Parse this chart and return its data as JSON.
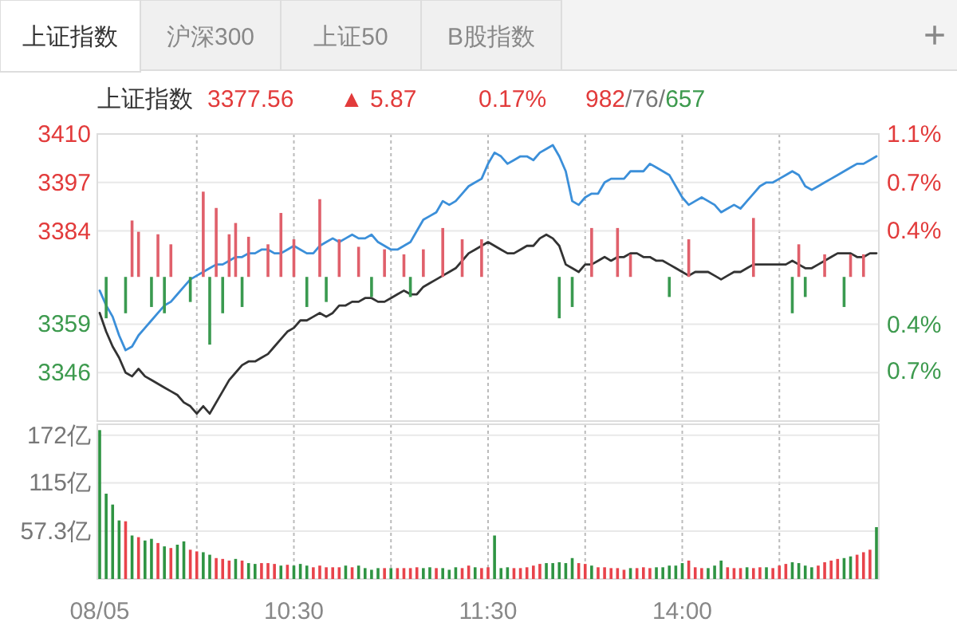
{
  "chart_data": [
    {
      "type": "other",
      "annotations": [
        "上证指数",
        "沪深300",
        "上证50",
        "B股指数",
        "+"
      ]
    },
    {
      "type": "line",
      "title": "上证指数",
      "annotations": [
        "3377.56",
        "▲ 5.87",
        "0.17%",
        "982/76/657"
      ],
      "categories": [
        null,
        null,
        null,
        null,
        null,
        null,
        null,
        null,
        null,
        null,
        null,
        null,
        null,
        null,
        null,
        null,
        null,
        null,
        null,
        null,
        null,
        null,
        null,
        null,
        null,
        null,
        null,
        null,
        null,
        null,
        null,
        null,
        null,
        null,
        null,
        null,
        null,
        null,
        null,
        null,
        null,
        null,
        null,
        null,
        null,
        null,
        null,
        null,
        null,
        null,
        null,
        null,
        null,
        null,
        null,
        null,
        null,
        null,
        null,
        null,
        null,
        null,
        null,
        null,
        null,
        null,
        null,
        null,
        null,
        null,
        null,
        null,
        null,
        null,
        null,
        null,
        null,
        null,
        null,
        null,
        null,
        null,
        null,
        null,
        null,
        null,
        null,
        null,
        null,
        null,
        null,
        null,
        null,
        null,
        null,
        null,
        null,
        null,
        null,
        null,
        null,
        null,
        null,
        null,
        null,
        null,
        null,
        null,
        null,
        null,
        null,
        null,
        null,
        null,
        null,
        null,
        null,
        null,
        null,
        null,
        null
      ],
      "series": [
        {
          "color": "#3b8fd9",
          "values": [
            3368,
            3364,
            3361,
            3356,
            3352,
            3353,
            3356,
            3358,
            3360,
            3362,
            3364,
            3365,
            3367,
            3369,
            3371,
            3372,
            3373,
            3374,
            3375,
            3375,
            3376,
            3377,
            3377,
            3378,
            3378,
            3379,
            3379,
            3378,
            3378,
            3379,
            3380,
            3379,
            3378,
            3378,
            3380,
            3381,
            3382,
            3381,
            3382,
            3383,
            3382,
            3382,
            3383,
            3381,
            3380,
            3379,
            3379,
            3380,
            3381,
            3384,
            3387,
            3388,
            3389,
            3392,
            3391,
            3392,
            3394,
            3396,
            3397,
            3398,
            3402,
            3405,
            3404,
            3402,
            3403,
            3404,
            3404,
            3403,
            3405,
            3406,
            3407,
            3404,
            3400,
            3392,
            3391,
            3393,
            3394,
            3394,
            3397,
            3398,
            3398,
            3398,
            3400,
            3400,
            3400,
            3402,
            3401,
            3400,
            3399,
            3396,
            3393,
            3391,
            3392,
            3393,
            3392,
            3391,
            3389,
            3390,
            3391,
            3390,
            3392,
            3394,
            3396,
            3397,
            3397,
            3398,
            3399,
            3400,
            3399,
            3396,
            3395,
            3396,
            3397,
            3398,
            3399,
            3400,
            3401,
            3402,
            3402,
            3403,
            3404
          ]
        },
        {
          "color": "#333333",
          "values": [
            3362,
            3357,
            3353,
            3350,
            3346,
            3345,
            3347,
            3345,
            3344,
            3343,
            3342,
            3341,
            3340,
            3338,
            3337,
            3335,
            3337,
            3335,
            3338,
            3341,
            3344,
            3346,
            3348,
            3349,
            3349,
            3350,
            3351,
            3353,
            3355,
            3357,
            3358,
            3360,
            3360,
            3361,
            3362,
            3361,
            3362,
            3364,
            3364,
            3365,
            3365,
            3366,
            3366,
            3365,
            3365,
            3366,
            3367,
            3368,
            3367,
            3367,
            3369,
            3370,
            3371,
            3372,
            3373,
            3374,
            3376,
            3378,
            3379,
            3380,
            3381,
            3380,
            3379,
            3378,
            3378,
            3379,
            3380,
            3380,
            3382,
            3383,
            3382,
            3380,
            3375,
            3374,
            3373,
            3375,
            3375,
            3376,
            3377,
            3376,
            3377,
            3377,
            3378,
            3378,
            3377,
            3377,
            3376,
            3376,
            3375,
            3374,
            3373,
            3372,
            3373,
            3373,
            3373,
            3372,
            3371,
            3372,
            3373,
            3373,
            3374,
            3375,
            3375,
            3375,
            3375,
            3375,
            3375,
            3376,
            3375,
            3374,
            3374,
            3375,
            3376,
            3377,
            3378,
            3378,
            3378,
            3377,
            3377,
            3378,
            3378
          ]
        },
        {
          "type": "bar",
          "axis": "y2",
          "color": "#e0606b",
          "values": [
            null,
            null,
            null,
            null,
            null,
            0.45,
            0.36,
            null,
            null,
            0.34,
            null,
            0.26,
            null,
            null,
            null,
            null,
            0.68,
            null,
            0.55,
            null,
            0.34,
            0.43,
            null,
            0.32,
            null,
            null,
            0.26,
            null,
            0.51,
            null,
            0.3,
            null,
            null,
            null,
            0.62,
            null,
            null,
            0.3,
            null,
            null,
            0.24,
            null,
            null,
            null,
            0.22,
            null,
            null,
            0.18,
            null,
            null,
            0.22,
            null,
            null,
            0.39,
            null,
            null,
            0.3,
            null,
            null,
            0.3,
            null,
            null,
            null,
            null,
            null,
            null,
            null,
            null,
            null,
            null,
            null,
            null,
            null,
            null,
            null,
            null,
            0.39,
            null,
            null,
            null,
            0.39,
            null,
            0.18,
            null,
            null,
            null,
            null,
            null,
            null,
            null,
            null,
            0.3,
            null,
            null,
            null,
            null,
            null,
            null,
            null,
            null,
            null,
            0.47,
            null,
            null,
            null,
            null,
            null,
            null,
            0.26,
            null,
            null,
            null,
            0.18,
            null,
            null,
            null,
            0.18,
            null,
            0.18,
            null,
            null
          ]
        },
        {
          "type": "bar",
          "axis": "y2",
          "color": "#3a9a50",
          "values": [
            null,
            -0.33,
            null,
            null,
            -0.29,
            null,
            null,
            null,
            -0.24,
            null,
            -0.29,
            null,
            null,
            null,
            -0.2,
            null,
            null,
            -0.54,
            null,
            -0.29,
            null,
            null,
            -0.24,
            null,
            null,
            null,
            null,
            null,
            null,
            null,
            null,
            null,
            -0.24,
            null,
            null,
            -0.2,
            null,
            null,
            null,
            null,
            null,
            null,
            -0.16,
            null,
            null,
            null,
            null,
            null,
            -0.16,
            null,
            null,
            null,
            null,
            null,
            null,
            null,
            null,
            null,
            null,
            null,
            null,
            null,
            null,
            null,
            null,
            null,
            null,
            null,
            null,
            null,
            null,
            -0.33,
            null,
            -0.24,
            null,
            null,
            null,
            null,
            null,
            null,
            null,
            null,
            null,
            null,
            null,
            null,
            null,
            null,
            -0.16,
            null,
            null,
            null,
            null,
            null,
            null,
            null,
            null,
            null,
            null,
            null,
            null,
            null,
            null,
            null,
            null,
            null,
            null,
            -0.29,
            null,
            -0.16,
            null,
            null,
            null,
            null,
            null,
            -0.24,
            null,
            null,
            null,
            null,
            null
          ]
        }
      ],
      "ylim": [
        3333,
        3410
      ],
      "yticks": [
        3346,
        3359,
        3384,
        3397,
        3410
      ],
      "y2lim": [
        -1.15,
        1.14
      ],
      "y2ticks": [
        {
          "value": -0.75,
          "label": "0.7%"
        },
        {
          "value": -0.38,
          "label": "0.4%"
        },
        {
          "value": 0.37,
          "label": "0.4%"
        },
        {
          "value": 0.75,
          "label": "0.7%"
        },
        {
          "value": 1.14,
          "label": "1.1%"
        }
      ],
      "grid": true,
      "tick_labels": "y"
    },
    {
      "type": "bar",
      "categories": [
        "08/05",
        null,
        null,
        null,
        null,
        null,
        null,
        null,
        null,
        null,
        null,
        null,
        null,
        null,
        null,
        null,
        null,
        null,
        null,
        null,
        null,
        null,
        null,
        null,
        null,
        null,
        null,
        null,
        null,
        null,
        "10:30",
        null,
        null,
        null,
        null,
        null,
        null,
        null,
        null,
        null,
        null,
        null,
        null,
        null,
        null,
        null,
        null,
        null,
        null,
        null,
        null,
        null,
        null,
        null,
        null,
        null,
        null,
        null,
        null,
        null,
        "11:30",
        null,
        null,
        null,
        null,
        null,
        null,
        null,
        null,
        null,
        null,
        null,
        null,
        null,
        null,
        null,
        null,
        null,
        null,
        null,
        null,
        null,
        null,
        null,
        null,
        null,
        null,
        null,
        null,
        null,
        "14:00",
        null,
        null,
        null,
        null,
        null,
        null,
        null,
        null,
        null,
        null,
        null,
        null,
        null,
        null,
        null,
        null,
        null,
        null,
        null,
        null,
        null,
        null,
        null,
        null,
        null,
        null,
        null,
        null,
        null,
        null
      ],
      "series": [
        {
          "color": "#e8434b",
          "values": [
            null,
            null,
            null,
            null,
            69,
            null,
            50,
            null,
            null,
            43,
            null,
            37,
            null,
            null,
            35,
            33,
            null,
            null,
            25,
            24,
            22,
            null,
            22,
            null,
            null,
            19,
            19,
            18,
            null,
            17,
            null,
            null,
            null,
            14,
            16,
            14,
            14,
            14,
            null,
            14,
            null,
            null,
            null,
            null,
            13,
            null,
            13,
            13,
            13,
            14,
            null,
            null,
            13,
            null,
            null,
            null,
            13,
            16,
            null,
            13,
            14,
            null,
            null,
            null,
            13,
            13,
            14,
            16,
            18,
            null,
            null,
            null,
            null,
            null,
            19,
            18,
            null,
            14,
            14,
            13,
            13,
            11,
            null,
            13,
            14,
            13,
            null,
            null,
            null,
            null,
            null,
            22,
            14,
            13,
            null,
            null,
            null,
            14,
            13,
            13,
            null,
            13,
            14,
            null,
            13,
            16,
            18,
            null,
            null,
            null,
            null,
            16,
            20,
            22,
            24,
            null,
            null,
            29,
            32,
            35,
            null
          ]
        },
        {
          "color": "#2f9443",
          "values": [
            178,
            102,
            89,
            70,
            null,
            52,
            null,
            46,
            48,
            null,
            39,
            null,
            41,
            45,
            null,
            null,
            32,
            29,
            null,
            null,
            null,
            24,
            null,
            19,
            18,
            null,
            null,
            null,
            16,
            null,
            16,
            18,
            16,
            null,
            null,
            null,
            null,
            null,
            16,
            null,
            16,
            13,
            11,
            13,
            null,
            13,
            null,
            null,
            null,
            null,
            13,
            14,
            null,
            13,
            11,
            14,
            null,
            null,
            14,
            null,
            null,
            52,
            13,
            14,
            null,
            null,
            null,
            null,
            null,
            19,
            19,
            20,
            19,
            25,
            null,
            null,
            16,
            null,
            null,
            null,
            null,
            null,
            13,
            null,
            null,
            null,
            14,
            14,
            16,
            16,
            19,
            null,
            null,
            null,
            13,
            16,
            22,
            null,
            null,
            null,
            14,
            null,
            null,
            14,
            null,
            null,
            null,
            20,
            19,
            16,
            14,
            null,
            null,
            null,
            null,
            25,
            27,
            null,
            null,
            null,
            62
          ]
        }
      ],
      "ylim": [
        0,
        185
      ],
      "yticks": [
        {
          "value": 57.3,
          "label": "57.3亿"
        },
        {
          "value": 115,
          "label": "115亿"
        },
        {
          "value": 172,
          "label": "172亿"
        }
      ],
      "grid": true
    }
  ]
}
